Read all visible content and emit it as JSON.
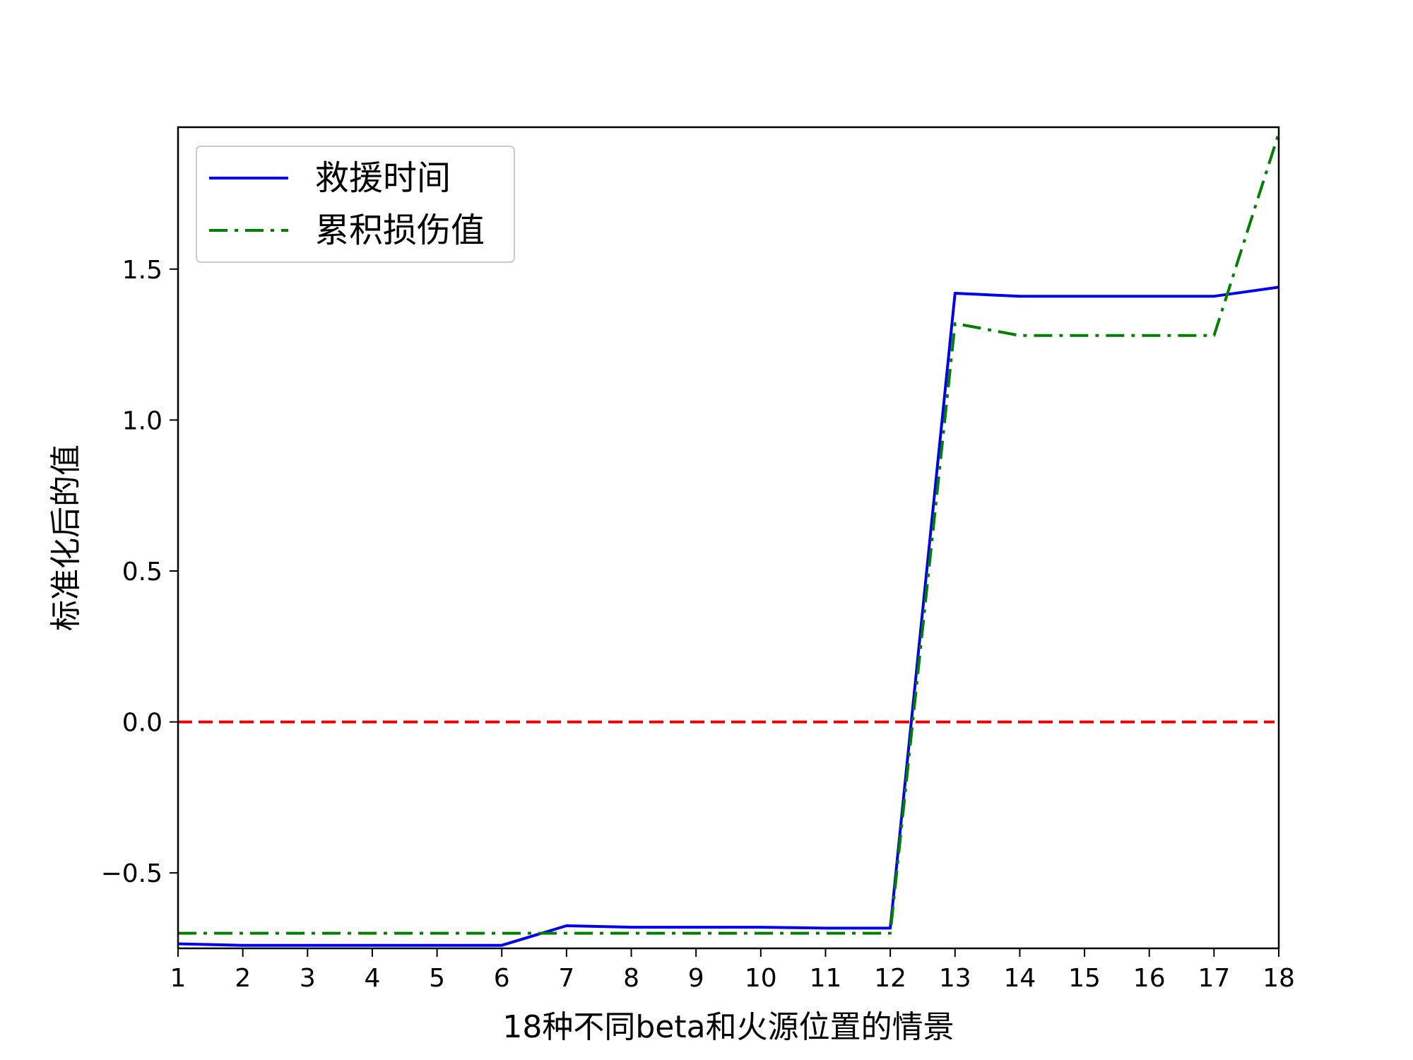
{
  "chart_data": {
    "type": "line",
    "xlabel": "18种不同beta和火源位置的情景",
    "ylabel": "标准化后的值",
    "x": [
      1,
      2,
      3,
      4,
      5,
      6,
      7,
      8,
      9,
      10,
      11,
      12,
      13,
      14,
      15,
      16,
      17,
      18
    ],
    "xticks": [
      "1",
      "2",
      "3",
      "4",
      "5",
      "6",
      "7",
      "8",
      "9",
      "10",
      "11",
      "12",
      "13",
      "14",
      "15",
      "16",
      "17",
      "18"
    ],
    "yticks": [
      -0.5,
      0.0,
      0.5,
      1.0,
      1.5
    ],
    "ytick_labels": [
      "−0.5",
      "0.0",
      "0.5",
      "1.0",
      "1.5"
    ],
    "xlim": [
      1,
      18
    ],
    "ylim": [
      -0.75,
      1.97
    ],
    "grid": false,
    "legend_position": "top-left",
    "series": [
      {
        "name": "救援时间",
        "color": "#0000ee",
        "style": "solid",
        "values": [
          -0.735,
          -0.74,
          -0.74,
          -0.74,
          -0.74,
          -0.74,
          -0.675,
          -0.68,
          -0.68,
          -0.68,
          -0.683,
          -0.683,
          1.42,
          1.41,
          1.41,
          1.41,
          1.41,
          1.44
        ]
      },
      {
        "name": "累积损伤值",
        "color": "#008000",
        "style": "dashdot",
        "values": [
          -0.7,
          -0.7,
          -0.7,
          -0.7,
          -0.7,
          -0.7,
          -0.7,
          -0.7,
          -0.7,
          -0.7,
          -0.7,
          -0.7,
          1.32,
          1.28,
          1.28,
          1.28,
          1.28,
          1.95
        ]
      }
    ],
    "reference_line": {
      "y": 0.0,
      "color": "#ee0000",
      "style": "dashed"
    }
  }
}
